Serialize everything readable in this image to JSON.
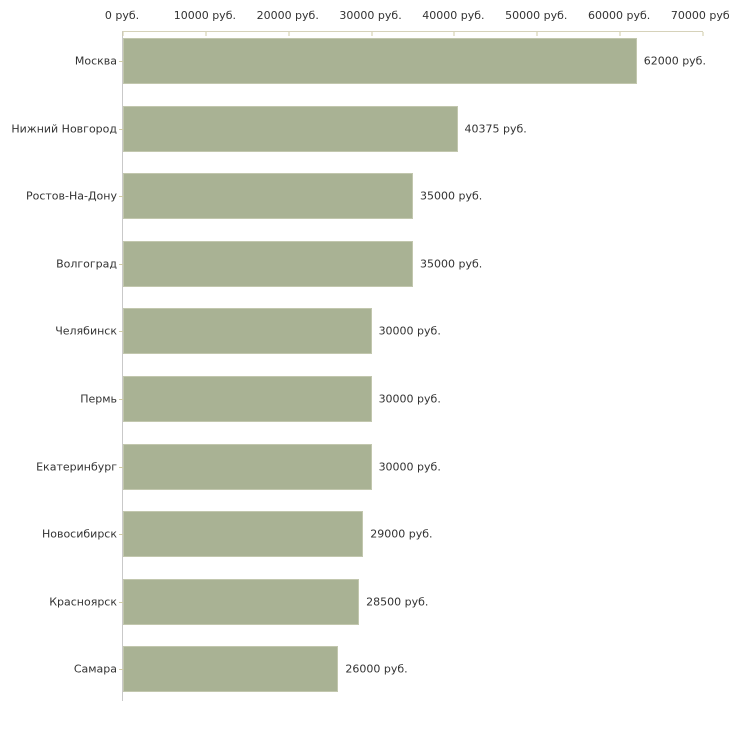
{
  "chart_data": {
    "type": "bar",
    "orientation": "horizontal",
    "title": "",
    "xlabel": "",
    "ylabel": "",
    "xlim": [
      0,
      70000
    ],
    "x_tick_interval": 10000,
    "x_tick_labels": [
      "0 руб.",
      "10000 руб.",
      "20000 руб.",
      "30000 руб.",
      "40000 руб.",
      "50000 руб.",
      "60000 руб.",
      "70000 руб."
    ],
    "categories": [
      "Москва",
      "Нижний Новгород",
      "Ростов-На-Дону",
      "Волгоград",
      "Челябинск",
      "Пермь",
      "Екатеринбург",
      "Новосибирск",
      "Красноярск",
      "Самара"
    ],
    "values": [
      62000,
      40375,
      35000,
      35000,
      30000,
      30000,
      30000,
      29000,
      28500,
      26000
    ],
    "value_labels": [
      "62000 руб.",
      "40375 руб.",
      "35000 руб.",
      "35000 руб.",
      "30000 руб.",
      "30000 руб.",
      "30000 руб.",
      "29000 руб.",
      "28500 руб.",
      "26000 руб."
    ],
    "unit": "руб.",
    "grid": false,
    "legend": false,
    "colors": {
      "background": "#ffffff",
      "bar_fill": "#a9b294",
      "bar_border": "#c2c7ae",
      "x_axis_line": "#d6d2ba",
      "y_axis_line": "#c9c9c9",
      "tick_mark": "#cfcba6",
      "text": "#333333"
    }
  }
}
